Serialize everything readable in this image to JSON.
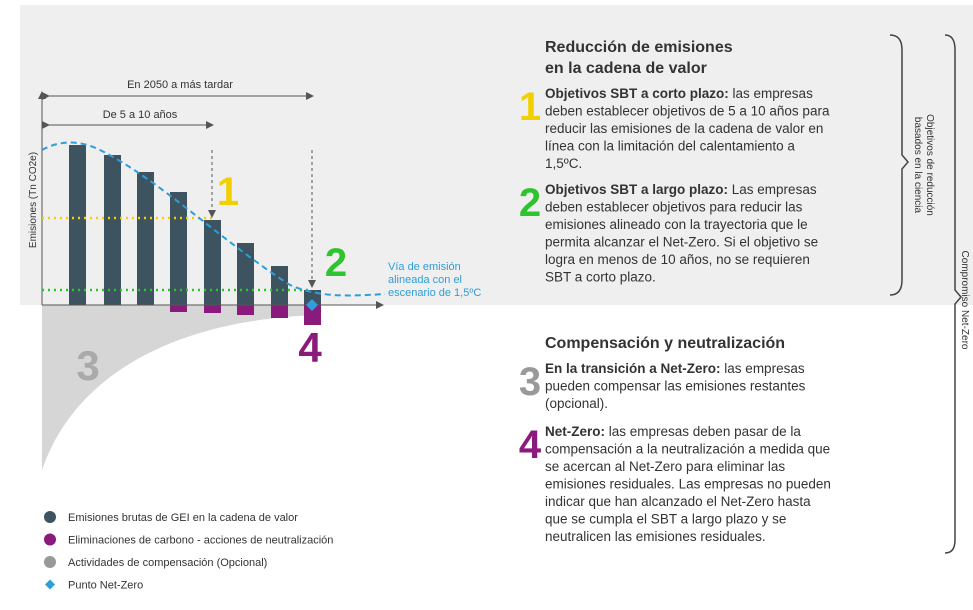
{
  "chart": {
    "axis_label": "Emisiones (Tn CO2e)",
    "span_long": "En 2050 a más tardar",
    "span_short": "De 5 a 10 años",
    "markers": [
      "1",
      "2",
      "3",
      "4"
    ],
    "pathway_label": [
      "Vía de emisión",
      "alineada con el",
      "escenario de 1,5ºC"
    ]
  },
  "legend": [
    "Emisiones brutas de GEI en la cadena de valor",
    "Eliminaciones de carbono - acciones de neutralización",
    "Actividades de compensación (Opcional)",
    "Punto Net-Zero"
  ],
  "sections": [
    {
      "heading": [
        "Reducción de emisiones",
        "en la cadena de valor"
      ],
      "items": [
        {
          "number": "1",
          "title": "Objetivos SBT a corto plazo:",
          "lines": [
            " las empresas",
            "deben establecer objetivos de 5 a 10 años para",
            "reducir las emisiones de la cadena de valor en",
            "línea con la limitación del calentamiento a",
            "1,5ºC."
          ]
        },
        {
          "number": "2",
          "title": "Objetivos SBT a largo plazo:",
          "lines": [
            " Las empresas",
            "deben establecer objetivos para reducir las",
            "emisiones alineado con la trayectoria que le",
            "permita alcanzar el Net-Zero. Si el objetivo se",
            "logra en menos de 10 años, no se requieren",
            "SBT a corto plazo."
          ]
        }
      ]
    },
    {
      "heading": [
        "Compensación y neutralización"
      ],
      "items": [
        {
          "number": "3",
          "title": "En la transición a Net-Zero:",
          "lines": [
            " las empresas",
            "pueden compensar las emisiones restantes",
            "(opcional)."
          ]
        },
        {
          "number": "4",
          "title": "Net-Zero:",
          "lines": [
            " las empresas deben pasar de la",
            "compensación a la neutralización a medida que",
            "se acercan al Net-Zero para eliminar las",
            "emisiones residuales. Las empresas no pueden",
            "indicar que han alcanzado el Net-Zero hasta",
            "que se cumpla el SBT a largo plazo y se",
            "neutralicen las emisiones residuales."
          ]
        }
      ]
    }
  ],
  "brackets": {
    "science": [
      "Objetivos de reducción",
      "basados en la ciencia"
    ],
    "netzero": "Compromiso Net-Zero"
  }
}
